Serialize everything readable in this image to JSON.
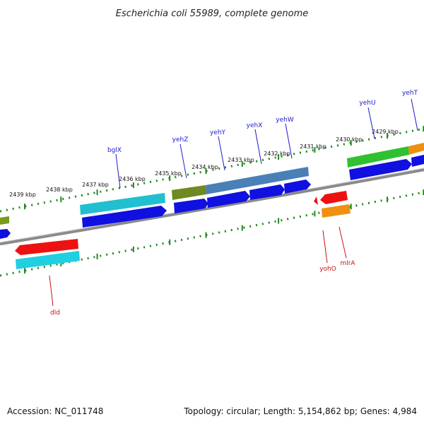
{
  "title": "Escherichia coli 55989, complete genome",
  "footer": {
    "accession": "Accession: NC_011748",
    "topology": "Topology: circular; Length: 5,154,862 bp; Genes: 4,984"
  },
  "colors": {
    "backbone": "#8a8a8a",
    "tick": "#1f8a1f",
    "cds": "#1010e0",
    "top_label": "#1a1acc",
    "bottom_label": "#cc1111"
  },
  "kbp_labels": [
    "2439 kbp",
    "2438 kbp",
    "2437 kbp",
    "2436 kbp",
    "2435 kbp",
    "2434 kbp",
    "2433 kbp",
    "2432 kbp",
    "2431 kbp",
    "2430 kbp",
    "2429 kbp"
  ],
  "top_genes": [
    {
      "name": "bglX",
      "color": "#20c0d0"
    },
    {
      "name": "yehZ",
      "color": "#7a8a20"
    },
    {
      "name": "yehY",
      "color": "#4a80b8"
    },
    {
      "name": "yehX",
      "color": "#4a80b8"
    },
    {
      "name": "yehW",
      "color": "#4a80b8"
    },
    {
      "name": "yehU",
      "color": "#30c030"
    },
    {
      "name": "yehT",
      "color": "#f09010"
    }
  ],
  "bottom_genes": [
    {
      "name": "dld",
      "color": "#ee1111"
    },
    {
      "name": "yohO",
      "color": "#ee1111"
    },
    {
      "name": "mlrA",
      "color": "#f09010"
    }
  ]
}
